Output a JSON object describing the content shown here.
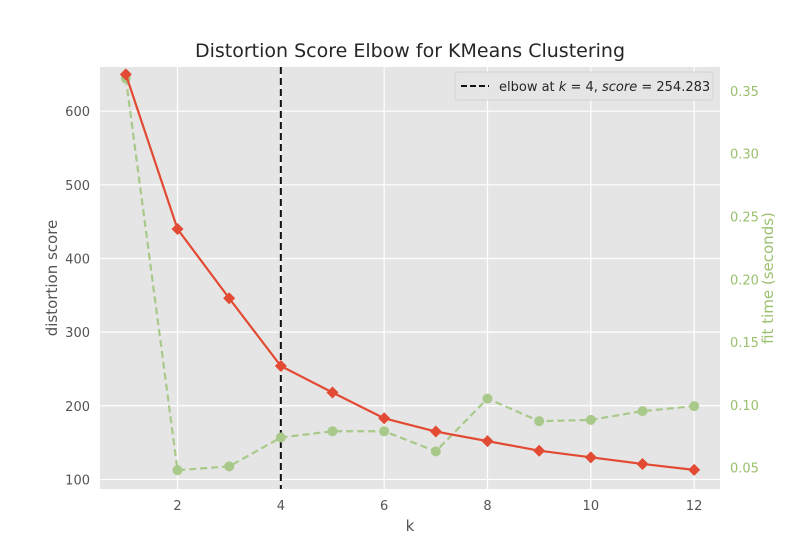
{
  "chart_data": {
    "type": "line",
    "title": "Distortion Score Elbow for KMeans Clustering",
    "xlabel": "k",
    "ylabel": "distortion score",
    "y2label": "fit time (seconds)",
    "x": [
      1,
      2,
      3,
      4,
      5,
      6,
      7,
      8,
      9,
      10,
      11,
      12
    ],
    "xlim": [
      0.5,
      12.5
    ],
    "ylim": [
      87,
      660
    ],
    "y2lim": [
      0.033,
      0.369
    ],
    "xticks": [
      2,
      4,
      6,
      8,
      10,
      12
    ],
    "yticks": [
      100,
      200,
      300,
      400,
      500,
      600
    ],
    "y2ticks": [
      0.05,
      0.1,
      0.15,
      0.2,
      0.25,
      0.3,
      0.35
    ],
    "series": [
      {
        "name": "distortion score",
        "axis": "left",
        "color": "#e24a33",
        "values": [
          650,
          440,
          346,
          254,
          218,
          183,
          165,
          152,
          139,
          130,
          121,
          113
        ]
      },
      {
        "name": "fit time",
        "axis": "right",
        "color": "#a8c98a",
        "values": [
          0.36,
          0.048,
          0.051,
          0.074,
          0.079,
          0.079,
          0.063,
          0.105,
          0.087,
          0.088,
          0.095,
          0.099
        ]
      }
    ],
    "elbow": {
      "k": 4,
      "color": "#111111"
    },
    "legend": {
      "label_prefix": "elbow at ",
      "label_k": "k",
      "label_eq1": " = 4, ",
      "label_score": "score",
      "label_eq2": " = 254.283",
      "position": "top-right"
    },
    "grid": true,
    "background": "#e5e5e5",
    "grid_color": "#ffffff",
    "right_axis_color": "#9bc06f"
  }
}
